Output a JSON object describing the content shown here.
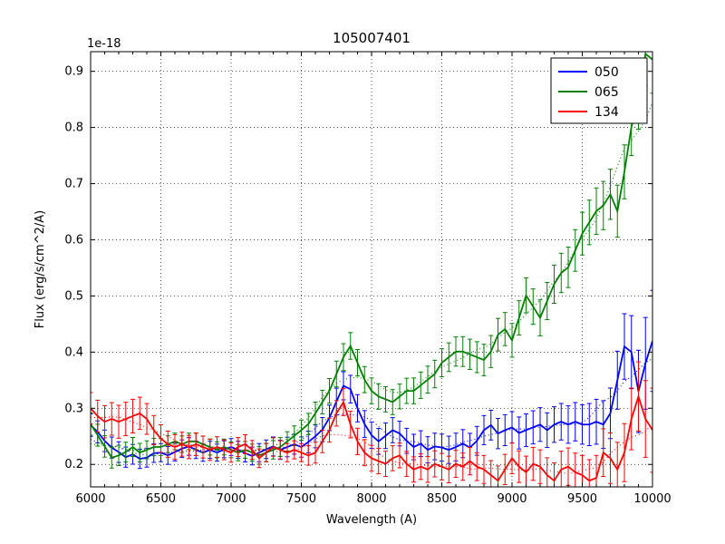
{
  "chart_data": {
    "type": "line",
    "title": "105007401",
    "xlabel": "Wavelength (A)",
    "ylabel": "Flux (erg/s/cm^2/A)",
    "y_offset_text": "1e-18",
    "xlim": [
      6000,
      10000
    ],
    "ylim": [
      0.16,
      0.935
    ],
    "grid": true,
    "legend_position": "upper right",
    "x_tick_values": [
      6000,
      6500,
      7000,
      7500,
      8000,
      8500,
      9000,
      9500,
      10000
    ],
    "x_tick_labels": [
      "6000",
      "6500",
      "7000",
      "7500",
      "8000",
      "8500",
      "9000",
      "9500",
      "10000"
    ],
    "y_tick_values": [
      0.2,
      0.3,
      0.4,
      0.5,
      0.6,
      0.7,
      0.8,
      0.9
    ],
    "y_tick_labels": [
      "0.2",
      "0.3",
      "0.4",
      "0.5",
      "0.6",
      "0.7",
      "0.8",
      "0.9"
    ],
    "x_start": 6000,
    "x_step": 50,
    "series": [
      {
        "label": "050",
        "color": "#0000ff",
        "values": [
          0.27,
          0.258,
          0.242,
          0.23,
          0.222,
          0.213,
          0.218,
          0.21,
          0.212,
          0.22,
          0.221,
          0.216,
          0.222,
          0.228,
          0.232,
          0.226,
          0.221,
          0.226,
          0.221,
          0.227,
          0.231,
          0.226,
          0.22,
          0.215,
          0.221,
          0.227,
          0.232,
          0.226,
          0.231,
          0.236,
          0.231,
          0.24,
          0.25,
          0.262,
          0.283,
          0.312,
          0.34,
          0.334,
          0.3,
          0.272,
          0.252,
          0.241,
          0.251,
          0.261,
          0.255,
          0.242,
          0.231,
          0.237,
          0.226,
          0.232,
          0.23,
          0.226,
          0.231,
          0.237,
          0.23,
          0.242,
          0.261,
          0.27,
          0.255,
          0.261,
          0.266,
          0.256,
          0.261,
          0.266,
          0.271,
          0.261,
          0.271,
          0.276,
          0.271,
          0.276,
          0.271,
          0.271,
          0.276,
          0.271,
          0.291,
          0.35,
          0.41,
          0.4,
          0.33,
          0.38,
          0.42
        ],
        "err_profile": [
          [
            6000,
            0.02
          ],
          [
            6500,
            0.016
          ],
          [
            7000,
            0.015
          ],
          [
            7500,
            0.018
          ],
          [
            7800,
            0.025
          ],
          [
            8200,
            0.022
          ],
          [
            8800,
            0.026
          ],
          [
            9200,
            0.03
          ],
          [
            9500,
            0.035
          ],
          [
            9700,
            0.045
          ],
          [
            9850,
            0.065
          ],
          [
            10000,
            0.09
          ]
        ]
      },
      {
        "label": "065",
        "color": "#008000",
        "values": [
          0.272,
          0.252,
          0.232,
          0.212,
          0.216,
          0.222,
          0.231,
          0.221,
          0.226,
          0.231,
          0.231,
          0.236,
          0.241,
          0.236,
          0.241,
          0.241,
          0.236,
          0.231,
          0.226,
          0.231,
          0.226,
          0.221,
          0.226,
          0.221,
          0.216,
          0.221,
          0.226,
          0.231,
          0.241,
          0.251,
          0.261,
          0.272,
          0.291,
          0.311,
          0.331,
          0.361,
          0.391,
          0.411,
          0.381,
          0.351,
          0.331,
          0.321,
          0.316,
          0.311,
          0.321,
          0.331,
          0.331,
          0.341,
          0.351,
          0.361,
          0.381,
          0.391,
          0.401,
          0.401,
          0.396,
          0.391,
          0.386,
          0.401,
          0.431,
          0.441,
          0.421,
          0.461,
          0.501,
          0.481,
          0.461,
          0.491,
          0.521,
          0.541,
          0.551,
          0.581,
          0.611,
          0.631,
          0.651,
          0.661,
          0.681,
          0.651,
          0.721,
          0.801,
          0.851,
          0.931,
          0.921
        ],
        "err_profile": [
          [
            6000,
            0.02
          ],
          [
            6500,
            0.015
          ],
          [
            7000,
            0.014
          ],
          [
            7500,
            0.018
          ],
          [
            7800,
            0.024
          ],
          [
            8200,
            0.022
          ],
          [
            8800,
            0.028
          ],
          [
            9200,
            0.032
          ],
          [
            9500,
            0.038
          ],
          [
            9800,
            0.048
          ],
          [
            10000,
            0.06
          ]
        ]
      },
      {
        "label": "134",
        "color": "#ff0000",
        "values": [
          0.3,
          0.286,
          0.276,
          0.281,
          0.276,
          0.281,
          0.286,
          0.291,
          0.281,
          0.261,
          0.246,
          0.236,
          0.231,
          0.236,
          0.231,
          0.236,
          0.231,
          0.226,
          0.231,
          0.226,
          0.221,
          0.231,
          0.236,
          0.226,
          0.211,
          0.221,
          0.231,
          0.226,
          0.221,
          0.226,
          0.221,
          0.216,
          0.221,
          0.241,
          0.261,
          0.291,
          0.311,
          0.271,
          0.241,
          0.221,
          0.211,
          0.206,
          0.201,
          0.211,
          0.216,
          0.201,
          0.191,
          0.196,
          0.191,
          0.201,
          0.196,
          0.191,
          0.201,
          0.196,
          0.206,
          0.196,
          0.191,
          0.181,
          0.171,
          0.191,
          0.211,
          0.196,
          0.186,
          0.201,
          0.196,
          0.181,
          0.171,
          0.191,
          0.196,
          0.186,
          0.181,
          0.171,
          0.176,
          0.221,
          0.211,
          0.191,
          0.221,
          0.281,
          0.321,
          0.281,
          0.261
        ],
        "err_profile": [
          [
            6000,
            0.028
          ],
          [
            6300,
            0.03
          ],
          [
            6600,
            0.022
          ],
          [
            7000,
            0.017
          ],
          [
            7500,
            0.016
          ],
          [
            7800,
            0.024
          ],
          [
            8200,
            0.022
          ],
          [
            8800,
            0.025
          ],
          [
            9200,
            0.03
          ],
          [
            9500,
            0.035
          ],
          [
            9700,
            0.045
          ],
          [
            9850,
            0.055
          ],
          [
            10000,
            0.075
          ]
        ]
      }
    ]
  }
}
